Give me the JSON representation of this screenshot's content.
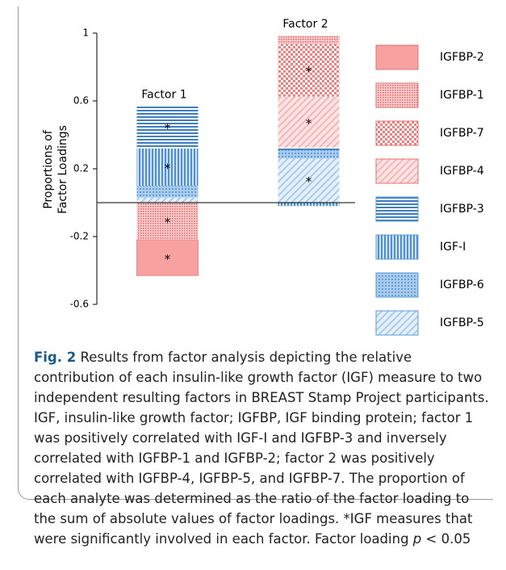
{
  "chart_data": {
    "type": "stacked_bar",
    "categories": [
      "Factor 1",
      "Factor 2"
    ],
    "ylabel": [
      "Proportions of",
      "Factor Loadings"
    ],
    "ylim": [
      -0.6,
      1
    ],
    "yticks": [
      1,
      0.6,
      0.2,
      -0.2,
      -0.6
    ],
    "series": [
      {
        "name": "IGFBP-2",
        "color": "#f4a0a0",
        "pattern": "solid",
        "values": [
          -0.21,
          0
        ],
        "annotations": [
          "*",
          null
        ]
      },
      {
        "name": "IGFBP-1",
        "color": "#f4a0a0",
        "pattern": "fine-dots",
        "values": [
          -0.22,
          0.05
        ],
        "annotations": [
          "*",
          null
        ]
      },
      {
        "name": "IGFBP-7",
        "color": "#f4a0a0",
        "pattern": "checker",
        "values": [
          0,
          0.31
        ],
        "annotations": [
          null,
          "*"
        ]
      },
      {
        "name": "IGFBP-4",
        "color": "#f4a0a0",
        "pattern": "diagonal",
        "values": [
          0,
          0.3
        ],
        "annotations": [
          null,
          "*"
        ]
      },
      {
        "name": "IGFBP-3",
        "color": "#5b9bd5",
        "pattern": "horizontal",
        "values": [
          0.25,
          0.015
        ],
        "annotations": [
          "*",
          null
        ]
      },
      {
        "name": "IGF-I",
        "color": "#5b9bd5",
        "pattern": "vertical",
        "values": [
          0.22,
          -0.02
        ],
        "annotations": [
          "*",
          null
        ]
      },
      {
        "name": "IGFBP-6",
        "color": "#5b9bd5",
        "pattern": "dots",
        "values": [
          0.07,
          0.05
        ],
        "annotations": [
          null,
          null
        ]
      },
      {
        "name": "IGFBP-5",
        "color": "#5b9bd5",
        "pattern": "diagonal",
        "values": [
          0.03,
          0.26
        ],
        "annotations": [
          null,
          "*"
        ]
      }
    ],
    "caption_label": "Fig. 2",
    "caption": " Results from factor analysis depicting the relative contribution of each insulin-like growth factor (IGF) measure to two independent resulting factors in BREAST Stamp Project participants. IGF, insulin-like growth factor; IGFBP, IGF binding protein; factor 1 was positively correlated with IGF-I and IGFBP-3 and inversely correlated with IGFBP-1 and IGFBP-2; factor 2 was positively correlated with IGFBP-4, IGFBP-5, and IGFBP-7. The proportion of each analyte was determined as the ratio of the factor loading to the sum of absolute values of factor loadings. *IGF measures that were significantly involved in each factor. Factor loading ",
    "caption_p": "p",
    "caption_end": " < 0.05"
  }
}
